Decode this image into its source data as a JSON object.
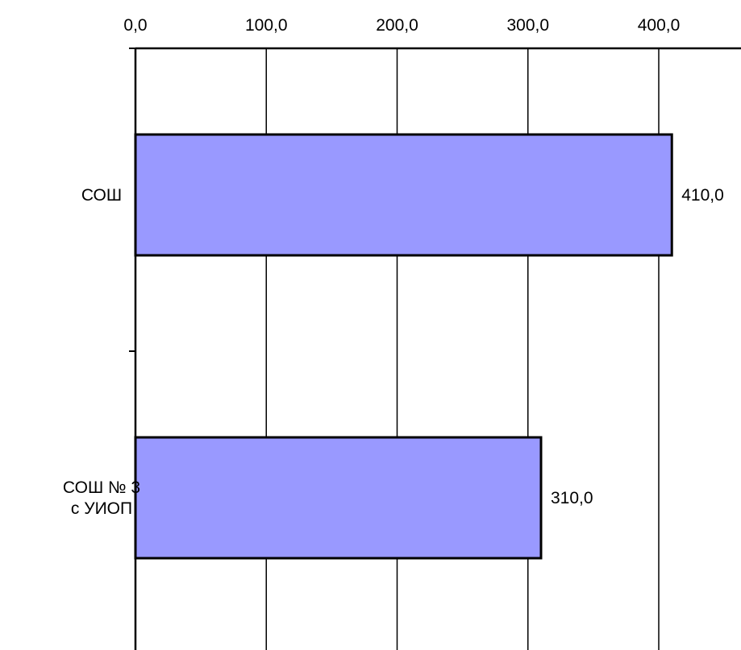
{
  "chart_data": {
    "type": "bar",
    "orientation": "horizontal",
    "categories": [
      "СОШ",
      "СОШ  № 3\nс УИОП"
    ],
    "values": [
      410.0,
      310.0
    ],
    "value_labels": [
      "410,0",
      "310,0"
    ],
    "xlim": [
      0,
      400
    ],
    "x_ticks": [
      0,
      100,
      200,
      300,
      400
    ],
    "x_tick_labels": [
      "0,0",
      "100,0",
      "200,0",
      "300,0",
      "400,0"
    ],
    "x_axis_position": "top",
    "grid": true,
    "title": "",
    "xlabel": "",
    "ylabel": "",
    "bar_color": "#9999ff",
    "bar_edge_color": "#000000",
    "legend": "none"
  }
}
